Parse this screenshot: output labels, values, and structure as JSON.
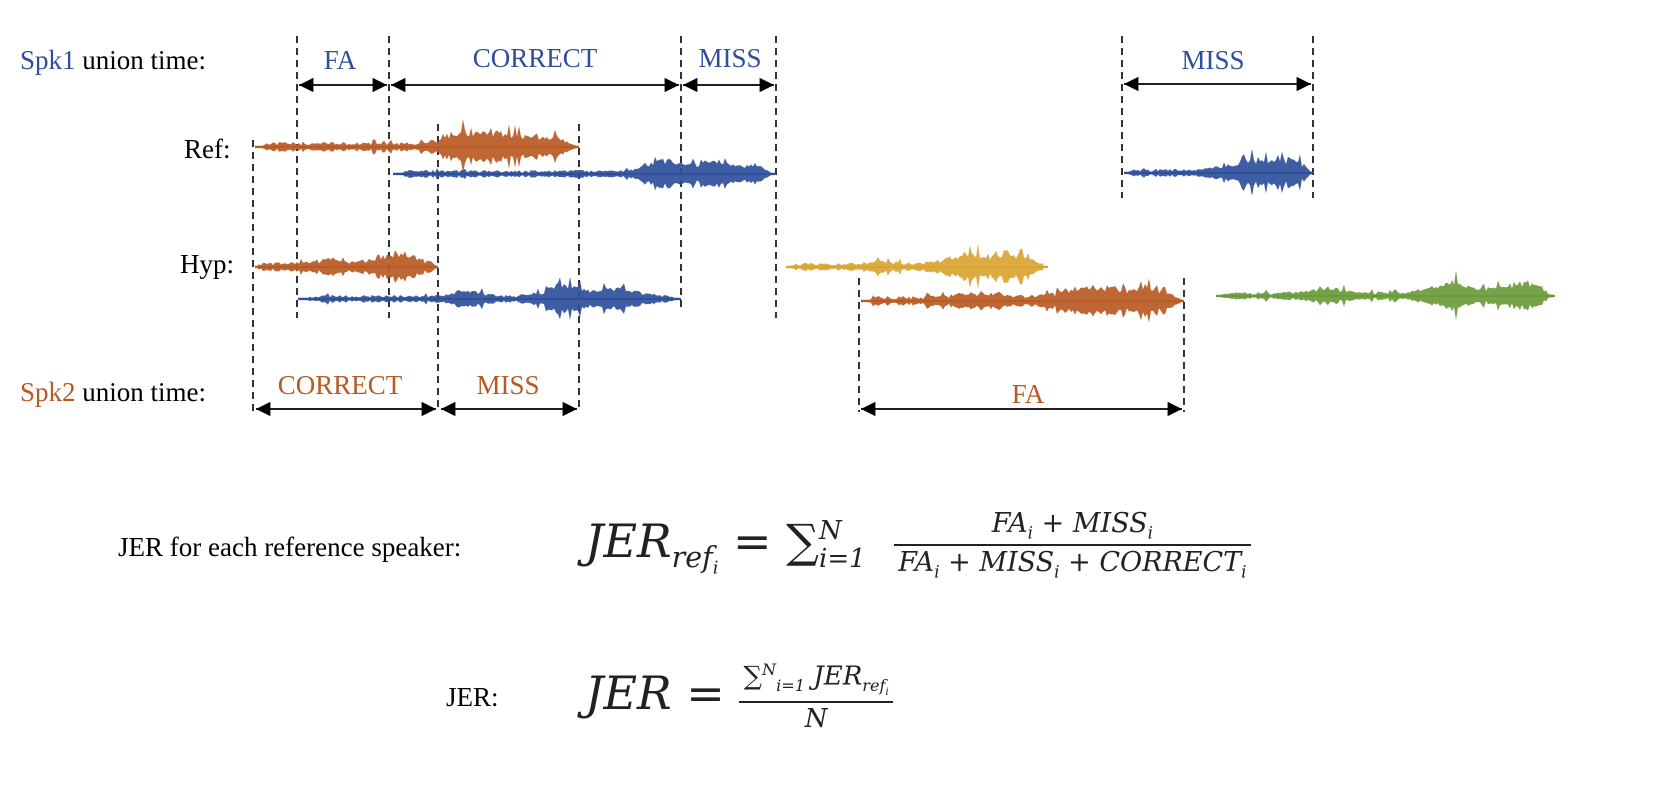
{
  "colors": {
    "blue": "#2f4f9b",
    "orange": "#b85a24",
    "yellow": "#d9a532",
    "green": "#6a9a3a",
    "black": "#000000"
  },
  "speaker1": {
    "name": "Spk1",
    "suffix": " union time:"
  },
  "speaker2": {
    "name": "Spk2",
    "suffix": " union time:"
  },
  "rows": {
    "ref": "Ref:",
    "hyp": "Hyp:"
  },
  "spk1_segments": [
    "FA",
    "CORRECT",
    "MISS",
    "MISS"
  ],
  "spk2_segments": [
    "CORRECT",
    "MISS",
    "FA"
  ],
  "formula1": {
    "label": "JER for each reference speaker:",
    "lhs": "JER",
    "lhs_sub": "ref",
    "lhs_subsub": "i",
    "sum_lower": "i=1",
    "sum_upper": "N",
    "numerator": "FA_i + MISS_i",
    "denominator": "FA_i + MISS_i + CORRECT_i"
  },
  "formula2": {
    "label": "JER:",
    "lhs": "JER",
    "denominator": "N"
  }
}
